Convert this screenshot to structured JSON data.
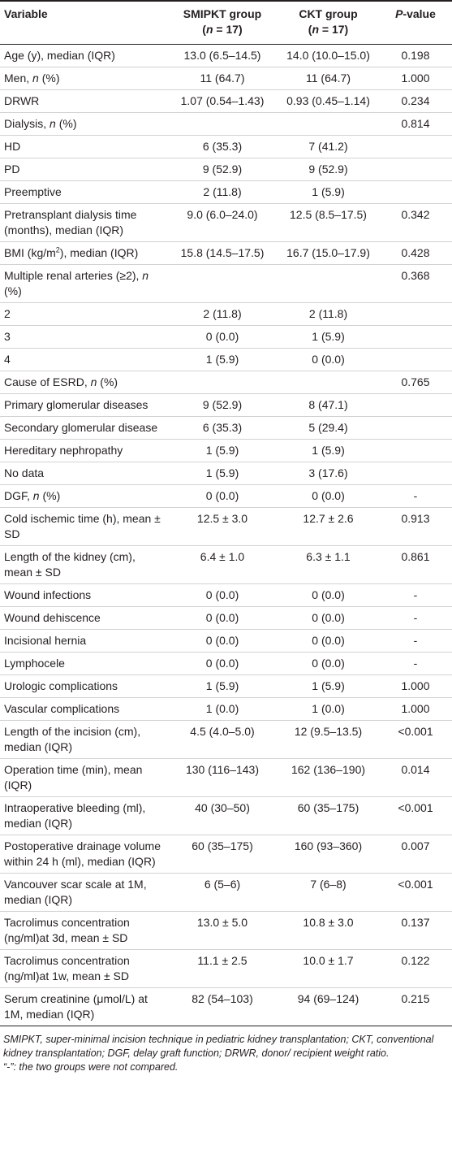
{
  "table": {
    "header": [
      [
        [
          "Variable"
        ]
      ],
      [
        [
          "SMIPKT group"
        ],
        [
          "(",
          {
            "i": "n"
          },
          " = 17)"
        ]
      ],
      [
        [
          "CKT group"
        ],
        [
          "(",
          {
            "i": "n"
          },
          " = 17)"
        ]
      ],
      [
        [
          {
            "i": "P"
          },
          "-value"
        ]
      ]
    ],
    "rows": [
      [
        "Age (y), median (IQR)",
        "13.0 (6.5–14.5)",
        "14.0 (10.0–15.0)",
        "0.198"
      ],
      [
        [
          "Men, ",
          {
            "i": "n"
          },
          " (%)"
        ],
        "11 (64.7)",
        "11 (64.7)",
        "1.000"
      ],
      [
        "DRWR",
        "1.07 (0.54–1.43)",
        "0.93 (0.45–1.14)",
        "0.234"
      ],
      [
        [
          "Dialysis, ",
          {
            "i": "n"
          },
          " (%)"
        ],
        null,
        null,
        "0.814"
      ],
      [
        "HD",
        "6 (35.3)",
        "7 (41.2)",
        null
      ],
      [
        "PD",
        "9 (52.9)",
        "9 (52.9)",
        null
      ],
      [
        "Preemptive",
        "2 (11.8)",
        "1 (5.9)",
        null
      ],
      [
        "Pretransplant dialysis time (months), median (IQR)",
        "9.0 (6.0–24.0)",
        "12.5 (8.5–17.5)",
        "0.342"
      ],
      [
        [
          "BMI (kg/m",
          {
            "sup": "2"
          },
          "), median (IQR)"
        ],
        "15.8 (14.5–17.5)",
        "16.7 (15.0–17.9)",
        "0.428"
      ],
      [
        [
          "Multiple renal arteries (≥2), ",
          {
            "i": "n"
          },
          " (%)"
        ],
        null,
        null,
        "0.368"
      ],
      [
        "2",
        "2 (11.8)",
        "2 (11.8)",
        null
      ],
      [
        "3",
        "0 (0.0)",
        "1 (5.9)",
        null
      ],
      [
        "4",
        "1 (5.9)",
        "0 (0.0)",
        null
      ],
      [
        [
          "Cause of ESRD, ",
          {
            "i": "n"
          },
          " (%)"
        ],
        null,
        null,
        "0.765"
      ],
      [
        "Primary glomerular diseases",
        "9 (52.9)",
        "8 (47.1)",
        null
      ],
      [
        "Secondary glomerular disease",
        "6 (35.3)",
        "5 (29.4)",
        null
      ],
      [
        "Hereditary nephropathy",
        "1 (5.9)",
        "1 (5.9)",
        null
      ],
      [
        "No data",
        "1 (5.9)",
        "3 (17.6)",
        null
      ],
      [
        [
          "DGF, ",
          {
            "i": "n"
          },
          " (%)"
        ],
        "0 (0.0)",
        "0 (0.0)",
        "-"
      ],
      [
        "Cold ischemic time (h), mean ± SD",
        "12.5 ± 3.0",
        "12.7 ± 2.6",
        "0.913"
      ],
      [
        "Length of the kidney (cm), mean ± SD",
        "6.4 ± 1.0",
        "6.3 ± 1.1",
        "0.861"
      ],
      [
        "Wound infections",
        "0 (0.0)",
        "0 (0.0)",
        "-"
      ],
      [
        "Wound dehiscence",
        "0 (0.0)",
        "0 (0.0)",
        "-"
      ],
      [
        "Incisional hernia",
        "0 (0.0)",
        "0 (0.0)",
        "-"
      ],
      [
        "Lymphocele",
        "0 (0.0)",
        "0 (0.0)",
        "-"
      ],
      [
        "Urologic complications",
        "1 (5.9)",
        "1 (5.9)",
        "1.000"
      ],
      [
        "Vascular complications",
        "1 (0.0)",
        "1 (0.0)",
        "1.000"
      ],
      [
        "Length of the incision (cm), median (IQR)",
        "4.5 (4.0–5.0)",
        "12 (9.5–13.5)",
        "<0.001"
      ],
      [
        "Operation time (min), mean (IQR)",
        "130 (116–143)",
        "162 (136–190)",
        "0.014"
      ],
      [
        "Intraoperative bleeding (ml), median (IQR)",
        "40 (30–50)",
        "60 (35–175)",
        "<0.001"
      ],
      [
        "Postoperative drainage volume within 24 h (ml), median (IQR)",
        "60 (35–175)",
        "160 (93–360)",
        "0.007"
      ],
      [
        "Vancouver scar scale at 1M, median (IQR)",
        "6 (5–6)",
        "7 (6–8)",
        "<0.001"
      ],
      [
        "Tacrolimus concentration (ng/ml)at 3d, mean ± SD",
        "13.0 ± 5.0",
        "10.8 ± 3.0",
        "0.137"
      ],
      [
        "Tacrolimus concentration (ng/ml)at 1w, mean ± SD",
        "11.1 ± 2.5",
        "10.0 ± 1.7",
        "0.122"
      ],
      [
        "Serum creatinine (μmol/L) at 1M, median (IQR)",
        "82 (54–103)",
        "94 (69–124)",
        "0.215"
      ]
    ]
  },
  "footnotes": [
    "SMIPKT, super-minimal incision technique in pediatric kidney transplantation; CKT, conventional kidney transplantation; DGF, delay graft function; DRWR, donor/ recipient weight ratio.",
    "“-”: the two groups were not compared."
  ]
}
